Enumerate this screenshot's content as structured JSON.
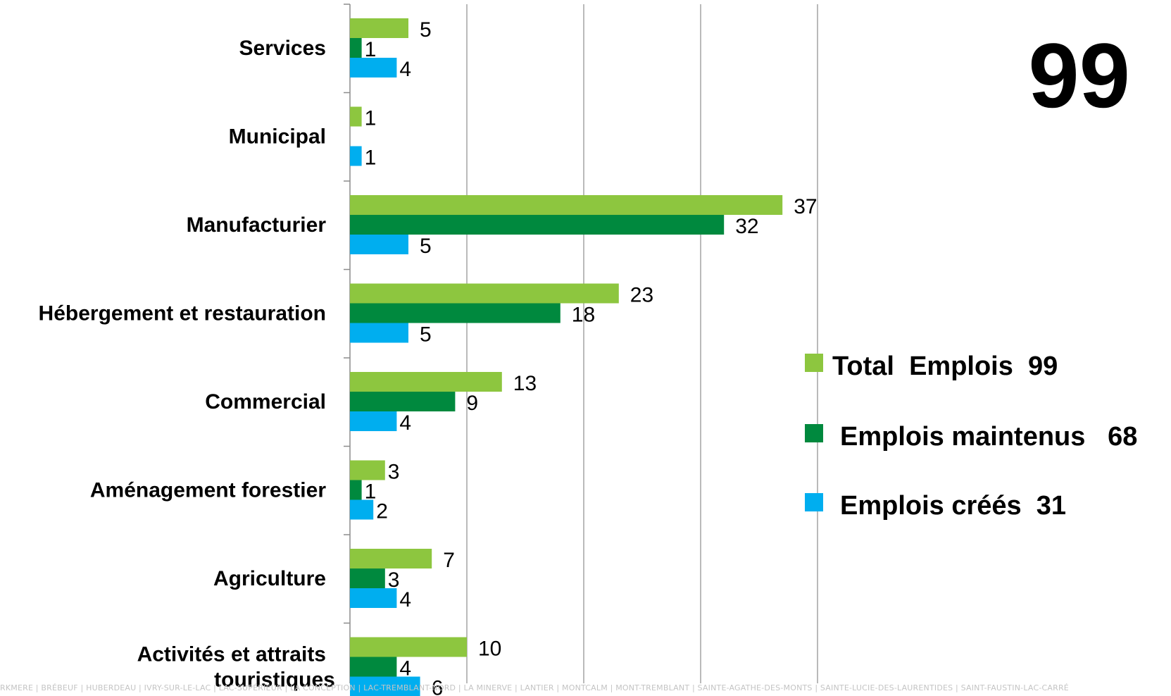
{
  "total_figure": "99",
  "footer_text": "RKMERE | BRÉBEUF | HUBERDEAU | IVRY-SUR-LE-LAC | LAC-SUPÉRIEUR | LA CONCEPTION | LAC-TREMBLANT-NORD | LA MINERVE | LANTIER | MONTCALM | MONT-TREMBLANT | SAINTE-AGATHE-DES-MONTS | SAINTE-LUCIE-DES-LAURENTIDES | SAINT-FAUSTIN-LAC-CARRÉ",
  "colors": {
    "total": "#8DC63F",
    "maintenus": "#00893E",
    "crees": "#00AEEF",
    "grid": "#8C8C8C"
  },
  "legend": [
    {
      "key": "total",
      "label": "Total  Emplois  99"
    },
    {
      "key": "maintenus",
      "label": "Emplois maintenus   68"
    },
    {
      "key": "crees",
      "label": "Emplois créés  31"
    }
  ],
  "chart_data": {
    "type": "bar",
    "orientation": "horizontal",
    "categories": [
      "Services",
      "Municipal",
      "Manufacturier",
      "Hébergement et restauration",
      "Commercial",
      "Aménagement forestier",
      "Agriculture",
      [
        "Activités et attraits",
        "touristiques"
      ]
    ],
    "series": [
      {
        "name": "Total  Emplois  99",
        "key": "total",
        "values": [
          5,
          1,
          37,
          23,
          13,
          3,
          7,
          10
        ]
      },
      {
        "name": "Emplois maintenus   68",
        "key": "maintenus",
        "values": [
          1,
          null,
          32,
          18,
          9,
          1,
          3,
          4
        ]
      },
      {
        "name": "Emplois créés  31",
        "key": "crees",
        "values": [
          4,
          1,
          5,
          5,
          4,
          2,
          4,
          6
        ]
      }
    ],
    "xlim": [
      0,
      40
    ],
    "grid": true,
    "legend_position": "right"
  }
}
